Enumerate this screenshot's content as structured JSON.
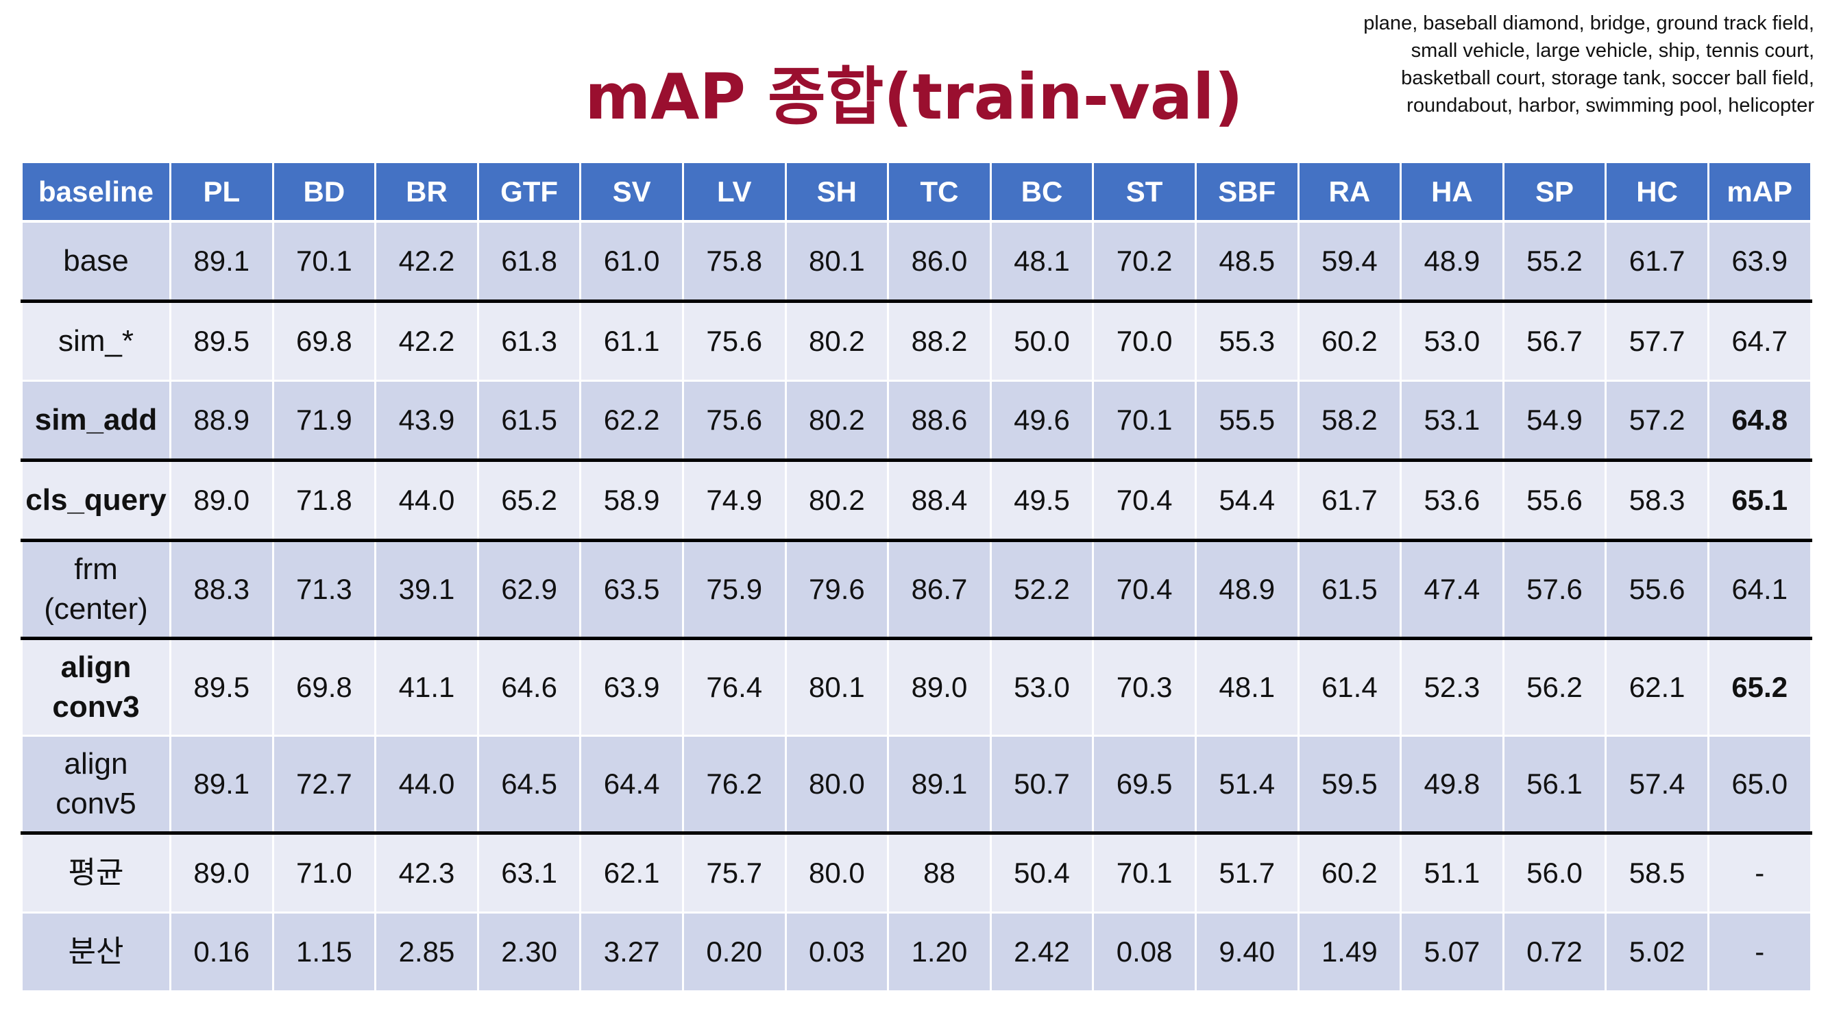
{
  "slide": {
    "title": "mAP 종합(train-val)",
    "class_note": "plane, baseball diamond, bridge, ground track field, small vehicle, large vehicle, ship, tennis court, basketball court, storage tank, soccer ball field, roundabout, harbor, swimming pool, helicopter"
  },
  "table": {
    "headers": [
      "baseline",
      "PL",
      "BD",
      "BR",
      "GTF",
      "SV",
      "LV",
      "SH",
      "TC",
      "BC",
      "ST",
      "SBF",
      "RA",
      "HA",
      "SP",
      "HC",
      "mAP"
    ],
    "rows": [
      {
        "label": [
          "base"
        ],
        "label_bold": false,
        "values": [
          "89.1",
          "70.1",
          "42.2",
          "61.8",
          "61.0",
          "75.8",
          "80.1",
          "86.0",
          "48.1",
          "70.2",
          "48.5",
          "59.4",
          "48.9",
          "55.2",
          "61.7",
          "63.9"
        ],
        "map_bold": false
      },
      {
        "label": [
          "sim_*"
        ],
        "label_bold": false,
        "values": [
          "89.5",
          "69.8",
          "42.2",
          "61.3",
          "61.1",
          "75.6",
          "80.2",
          "88.2",
          "50.0",
          "70.0",
          "55.3",
          "60.2",
          "53.0",
          "56.7",
          "57.7",
          "64.7"
        ],
        "map_bold": false
      },
      {
        "label": [
          "sim_add"
        ],
        "label_bold": true,
        "values": [
          "88.9",
          "71.9",
          "43.9",
          "61.5",
          "62.2",
          "75.6",
          "80.2",
          "88.6",
          "49.6",
          "70.1",
          "55.5",
          "58.2",
          "53.1",
          "54.9",
          "57.2",
          "64.8"
        ],
        "map_bold": true
      },
      {
        "label": [
          "cls_query"
        ],
        "label_bold": true,
        "values": [
          "89.0",
          "71.8",
          "44.0",
          "65.2",
          "58.9",
          "74.9",
          "80.2",
          "88.4",
          "49.5",
          "70.4",
          "54.4",
          "61.7",
          "53.6",
          "55.6",
          "58.3",
          "65.1"
        ],
        "map_bold": true
      },
      {
        "label": [
          "frm",
          "(center)"
        ],
        "label_bold": false,
        "values": [
          "88.3",
          "71.3",
          "39.1",
          "62.9",
          "63.5",
          "75.9",
          "79.6",
          "86.7",
          "52.2",
          "70.4",
          "48.9",
          "61.5",
          "47.4",
          "57.6",
          "55.6",
          "64.1"
        ],
        "map_bold": false
      },
      {
        "label": [
          "align",
          "conv3"
        ],
        "label_bold": true,
        "values": [
          "89.5",
          "69.8",
          "41.1",
          "64.6",
          "63.9",
          "76.4",
          "80.1",
          "89.0",
          "53.0",
          "70.3",
          "48.1",
          "61.4",
          "52.3",
          "56.2",
          "62.1",
          "65.2"
        ],
        "map_bold": true
      },
      {
        "label": [
          "align",
          "conv5"
        ],
        "label_bold": false,
        "values": [
          "89.1",
          "72.7",
          "44.0",
          "64.5",
          "64.4",
          "76.2",
          "80.0",
          "89.1",
          "50.7",
          "69.5",
          "51.4",
          "59.5",
          "49.8",
          "56.1",
          "57.4",
          "65.0"
        ],
        "map_bold": false
      },
      {
        "label": [
          "평균"
        ],
        "label_bold": false,
        "values": [
          "89.0",
          "71.0",
          "42.3",
          "63.1",
          "62.1",
          "75.7",
          "80.0",
          "88",
          "50.4",
          "70.1",
          "51.7",
          "60.2",
          "51.1",
          "56.0",
          "58.5",
          "-"
        ],
        "map_bold": false
      },
      {
        "label": [
          "분산"
        ],
        "label_bold": false,
        "values": [
          "0.16",
          "1.15",
          "2.85",
          "2.30",
          "3.27",
          "0.20",
          "0.03",
          "1.20",
          "2.42",
          "0.08",
          "9.40",
          "1.49",
          "5.07",
          "0.72",
          "5.02",
          "-"
        ],
        "map_bold": false
      }
    ]
  },
  "colors": {
    "title": "#9a0f2f",
    "header_bg": "#4472c4",
    "row_dark": "#cfd5ea",
    "row_light": "#e9ebf5",
    "separator": "#000000"
  }
}
